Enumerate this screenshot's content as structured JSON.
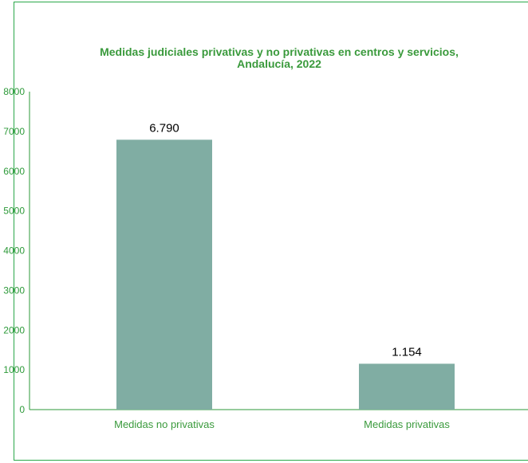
{
  "chart_data": {
    "type": "bar",
    "title": "Medidas judiciales privativas y no privativas en centros y servicios,\nAndalucía, 2022",
    "categories": [
      "Medidas no privativas",
      "Medidas privativas"
    ],
    "values": [
      6790,
      1154
    ],
    "data_labels": [
      "6.790",
      "1.154"
    ],
    "ylim": [
      0,
      8000
    ],
    "yticks": [
      "0",
      "1000",
      "2000",
      "3000",
      "4000",
      "5000",
      "6000",
      "7000",
      "8000"
    ],
    "bar_color": "#80ada3",
    "axis_color": "#2e9a3a",
    "grid": false,
    "legend": "none"
  }
}
